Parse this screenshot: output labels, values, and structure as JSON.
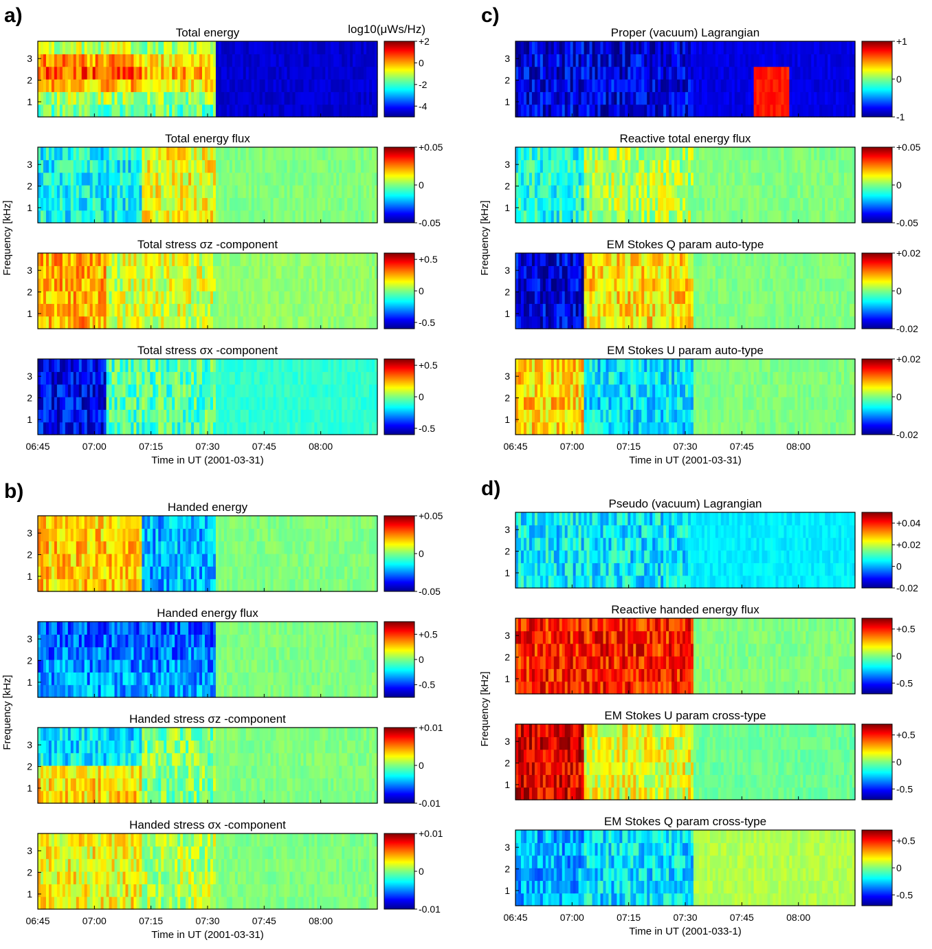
{
  "chart_data": [
    {
      "type": "heatmap",
      "label": "a)",
      "ylabel": "Frequency [kHz]",
      "xlabel": "Time in UT (2001-03-31)",
      "x_ticks": [
        "06:45",
        "07:00",
        "07:15",
        "07:30",
        "07:45",
        "08:00"
      ],
      "y_ticks": [
        "1",
        "2",
        "3"
      ],
      "subplots": [
        {
          "title": "Total energy",
          "colorbar_title": "log10(μWs/Hz)",
          "clim": [
            -5,
            2
          ],
          "colorbar_ticks": [
            "+2",
            "0",
            "-2",
            "-4"
          ]
        },
        {
          "title": "Total energy flux",
          "clim": [
            -0.05,
            0.05
          ],
          "colorbar_ticks": [
            "+0.05",
            "0",
            "-0.05"
          ]
        },
        {
          "title": "Total stress σz -component",
          "clim": [
            -0.6,
            0.6
          ],
          "colorbar_ticks": [
            "+0.5",
            "0",
            "-0.5"
          ]
        },
        {
          "title": "Total stress σx -component",
          "clim": [
            -0.6,
            0.6
          ],
          "colorbar_ticks": [
            "+0.5",
            "0",
            "-0.5"
          ]
        }
      ]
    },
    {
      "type": "heatmap",
      "label": "b)",
      "ylabel": "Frequency [kHz]",
      "xlabel": "Time in UT (2001-03-31)",
      "x_ticks": [
        "06:45",
        "07:00",
        "07:15",
        "07:30",
        "07:45",
        "08:00"
      ],
      "y_ticks": [
        "1",
        "2",
        "3"
      ],
      "subplots": [
        {
          "title": "Handed energy",
          "clim": [
            -0.05,
            0.05
          ],
          "colorbar_ticks": [
            "+0.05",
            "0",
            "-0.05"
          ]
        },
        {
          "title": "Handed energy flux",
          "clim": [
            -0.75,
            0.75
          ],
          "colorbar_ticks": [
            "+0.5",
            "0",
            "-0.5"
          ]
        },
        {
          "title": "Handed stress σz -component",
          "clim": [
            -0.01,
            0.01
          ],
          "colorbar_ticks": [
            "+0.01",
            "0",
            "-0.01"
          ]
        },
        {
          "title": "Handed stress σx -component",
          "clim": [
            -0.01,
            0.01
          ],
          "colorbar_ticks": [
            "+0.01",
            "0",
            "-0.01"
          ]
        }
      ]
    },
    {
      "type": "heatmap",
      "label": "c)",
      "ylabel": "Frequency [kHz]",
      "xlabel": "Time in UT (2001-03-31)",
      "x_ticks": [
        "06:45",
        "07:00",
        "07:15",
        "07:30",
        "07:45",
        "08:00"
      ],
      "y_ticks": [
        "1",
        "2",
        "3"
      ],
      "subplots": [
        {
          "title": "Proper (vacuum) Lagrangian",
          "clim": [
            -1,
            1
          ],
          "colorbar_ticks": [
            "+1",
            "0",
            "-1"
          ]
        },
        {
          "title": "Reactive total energy flux",
          "clim": [
            -0.05,
            0.05
          ],
          "colorbar_ticks": [
            "+0.05",
            "0",
            "-0.05"
          ]
        },
        {
          "title": "EM Stokes Q param auto-type",
          "clim": [
            -0.02,
            0.02
          ],
          "colorbar_ticks": [
            "+0.02",
            "0",
            "-0.02"
          ]
        },
        {
          "title": "EM Stokes U param auto-type",
          "clim": [
            -0.02,
            0.02
          ],
          "colorbar_ticks": [
            "+0.02",
            "0",
            "-0.02"
          ]
        }
      ]
    },
    {
      "type": "heatmap",
      "label": "d)",
      "ylabel": "Frequency [kHz]",
      "xlabel": "Time in UT (2001-033-1)",
      "x_ticks": [
        "06:45",
        "07:00",
        "07:15",
        "07:30",
        "07:45",
        "08:00"
      ],
      "y_ticks": [
        "1",
        "2",
        "3"
      ],
      "subplots": [
        {
          "title": "Pseudo (vacuum) Lagrangian",
          "clim": [
            -0.02,
            0.05
          ],
          "colorbar_ticks": [
            "+0.04",
            "+0.02",
            "0",
            "-0.02"
          ]
        },
        {
          "title": "Reactive handed energy flux",
          "clim": [
            -0.7,
            0.7
          ],
          "colorbar_ticks": [
            "+0.5",
            "0",
            "-0.5"
          ]
        },
        {
          "title": "EM Stokes U param cross-type",
          "clim": [
            -0.7,
            0.7
          ],
          "colorbar_ticks": [
            "+0.5",
            "0",
            "-0.5"
          ]
        },
        {
          "title": "EM Stokes Q param cross-type",
          "clim": [
            -0.7,
            0.7
          ],
          "colorbar_ticks": [
            "+0.5",
            "0",
            "-0.5"
          ]
        }
      ]
    }
  ]
}
